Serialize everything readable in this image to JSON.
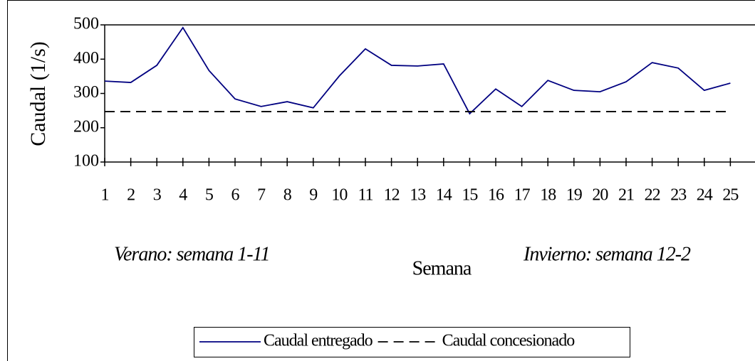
{
  "chart_data": {
    "type": "line",
    "y_label": "Caudal (1/s)",
    "x_label": "Semana",
    "annotations": [
      "Verano:  semana 1-11",
      "Invierno: semana 12-2"
    ],
    "categories": [
      "1",
      "2",
      "3",
      "4",
      "5",
      "6",
      "7",
      "8",
      "9",
      "10",
      "11",
      "12",
      "13",
      "14",
      "15",
      "16",
      "17",
      "18",
      "19",
      "20",
      "21",
      "22",
      "23",
      "24",
      "25"
    ],
    "series": [
      {
        "name": "Caudal entregado",
        "color": "#000080",
        "dash": false,
        "values": [
          336,
          332,
          382,
          492,
          367,
          284,
          262,
          276,
          258,
          351,
          430,
          382,
          380,
          386,
          241,
          313,
          262,
          338,
          309,
          305,
          334,
          390,
          374,
          309,
          330
        ]
      },
      {
        "name": "Caudal concesionado",
        "color": "#000000",
        "dash": true,
        "values": [
          247,
          247,
          247,
          247,
          247,
          247,
          247,
          247,
          247,
          247,
          247,
          247,
          247,
          247,
          247,
          247,
          247,
          247,
          247,
          247,
          247,
          247,
          247,
          247,
          247
        ]
      }
    ],
    "ylim": [
      100,
      500
    ],
    "yticks": [
      100,
      200,
      300,
      400,
      500
    ],
    "grid": false
  }
}
